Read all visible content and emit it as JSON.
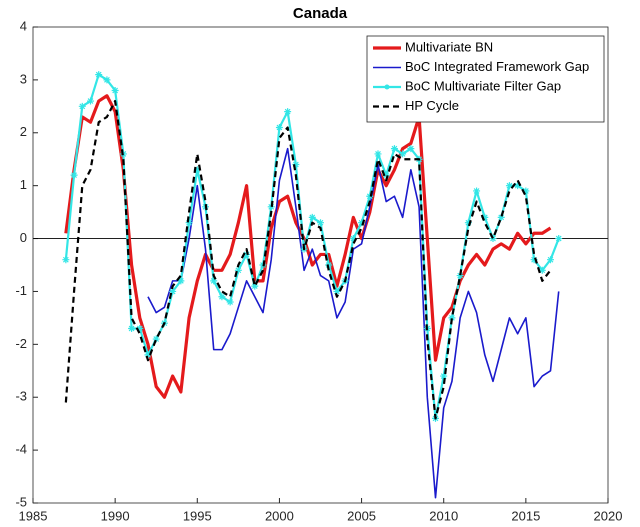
{
  "chart_data": {
    "type": "line",
    "title": "Canada",
    "x": [
      1987,
      1987.5,
      1988,
      1988.5,
      1989,
      1989.5,
      1990,
      1990.5,
      1991,
      1991.5,
      1992,
      1992.5,
      1993,
      1993.5,
      1994,
      1994.5,
      1995,
      1995.5,
      1996,
      1996.5,
      1997,
      1997.5,
      1998,
      1998.5,
      1999,
      1999.5,
      2000,
      2000.5,
      2001,
      2001.5,
      2002,
      2002.5,
      2003,
      2003.5,
      2004,
      2004.5,
      2005,
      2005.5,
      2006,
      2006.5,
      2007,
      2007.5,
      2008,
      2008.5,
      2009,
      2009.5,
      2010,
      2010.5,
      2011,
      2011.5,
      2012,
      2012.5,
      2013,
      2013.5,
      2014,
      2014.5,
      2015,
      2015.5,
      2016,
      2016.5,
      2017
    ],
    "series": [
      {
        "name": "Multivariate BN",
        "color": "#e41a1c",
        "width": 3.2,
        "values": [
          0.1,
          1.3,
          2.3,
          2.2,
          2.6,
          2.7,
          2.4,
          1.3,
          -0.5,
          -1.5,
          -2.0,
          -2.8,
          -3.0,
          -2.6,
          -2.9,
          -1.5,
          -0.8,
          -0.3,
          -0.6,
          -0.6,
          -0.3,
          0.3,
          1.0,
          -0.8,
          -0.8,
          0.2,
          0.7,
          0.8,
          0.3,
          0.0,
          -0.5,
          -0.3,
          -0.3,
          -0.9,
          -0.3,
          0.4,
          0.0,
          0.5,
          1.3,
          1.0,
          1.3,
          1.7,
          1.8,
          2.3,
          0.0,
          -2.3,
          -1.5,
          -1.3,
          -0.8,
          -0.5,
          -0.3,
          -0.5,
          -0.2,
          -0.1,
          -0.2,
          0.1,
          -0.1,
          0.1,
          0.1,
          0.2,
          null
        ]
      },
      {
        "name": "BoC Integrated Framework Gap",
        "color": "#1a1acc",
        "width": 1.6,
        "values": [
          null,
          null,
          null,
          null,
          null,
          null,
          null,
          null,
          null,
          null,
          -1.1,
          -1.4,
          -1.3,
          -0.8,
          -0.8,
          0.0,
          1.0,
          -0.2,
          -2.1,
          -2.1,
          -1.8,
          -1.3,
          -0.8,
          -1.1,
          -1.4,
          -0.4,
          1.1,
          1.7,
          0.6,
          -0.6,
          -0.2,
          -0.7,
          -0.8,
          -1.5,
          -1.2,
          -0.2,
          -0.1,
          0.6,
          1.4,
          0.7,
          0.8,
          0.4,
          1.3,
          0.6,
          -3.0,
          -4.9,
          -3.2,
          -2.7,
          -1.5,
          -1.0,
          -1.4,
          -2.2,
          -2.7,
          -2.1,
          -1.5,
          -1.8,
          -1.5,
          -2.8,
          -2.6,
          -2.5,
          -1.0
        ]
      },
      {
        "name": "BoC Multivariate Filter Gap",
        "color": "#33e6e6",
        "width": 2.2,
        "marker": "star",
        "values": [
          -0.4,
          1.2,
          2.5,
          2.6,
          3.1,
          3.0,
          2.8,
          1.6,
          -1.7,
          -1.7,
          -2.2,
          -1.9,
          -1.6,
          -1.0,
          -0.8,
          0.3,
          1.3,
          0.6,
          -0.8,
          -1.1,
          -1.2,
          -0.6,
          -0.3,
          -0.9,
          -0.5,
          0.6,
          2.1,
          2.4,
          1.4,
          -0.2,
          0.4,
          0.3,
          -0.5,
          -1.0,
          -0.8,
          0.0,
          0.3,
          0.8,
          1.6,
          1.2,
          1.7,
          1.6,
          1.7,
          1.5,
          -1.7,
          -3.4,
          -2.6,
          -1.5,
          -0.7,
          0.3,
          0.9,
          0.4,
          0.0,
          0.4,
          1.0,
          1.0,
          0.9,
          -0.4,
          -0.6,
          -0.4,
          0.0
        ]
      },
      {
        "name": "HP Cycle",
        "color": "#000000",
        "width": 2.2,
        "line_style": "dashed",
        "values": [
          -3.1,
          -1.0,
          1.0,
          1.3,
          2.2,
          2.3,
          2.6,
          1.5,
          -1.5,
          -1.8,
          -2.3,
          -1.9,
          -1.6,
          -0.9,
          -0.7,
          0.5,
          1.6,
          0.7,
          -0.7,
          -1.0,
          -1.1,
          -0.5,
          -0.2,
          -0.9,
          -0.6,
          0.5,
          1.9,
          2.1,
          1.2,
          -0.2,
          0.3,
          0.2,
          -0.6,
          -1.1,
          -0.8,
          -0.1,
          0.2,
          0.7,
          1.5,
          1.1,
          1.6,
          1.5,
          1.5,
          1.5,
          -1.9,
          -3.4,
          -2.8,
          -1.5,
          -0.7,
          0.2,
          0.7,
          0.3,
          0.0,
          0.4,
          0.9,
          1.1,
          0.8,
          -0.3,
          -0.8,
          -0.6,
          null
        ]
      }
    ],
    "xlim": [
      1985,
      2020
    ],
    "xticks": [
      1985,
      1990,
      1995,
      2000,
      2005,
      2010,
      2015,
      2020
    ],
    "ylim": [
      -5,
      4
    ],
    "yticks": [
      -5,
      -4,
      -3,
      -2,
      -1,
      0,
      1,
      2,
      3,
      4
    ],
    "zero_line": true,
    "legend": "upper right"
  }
}
